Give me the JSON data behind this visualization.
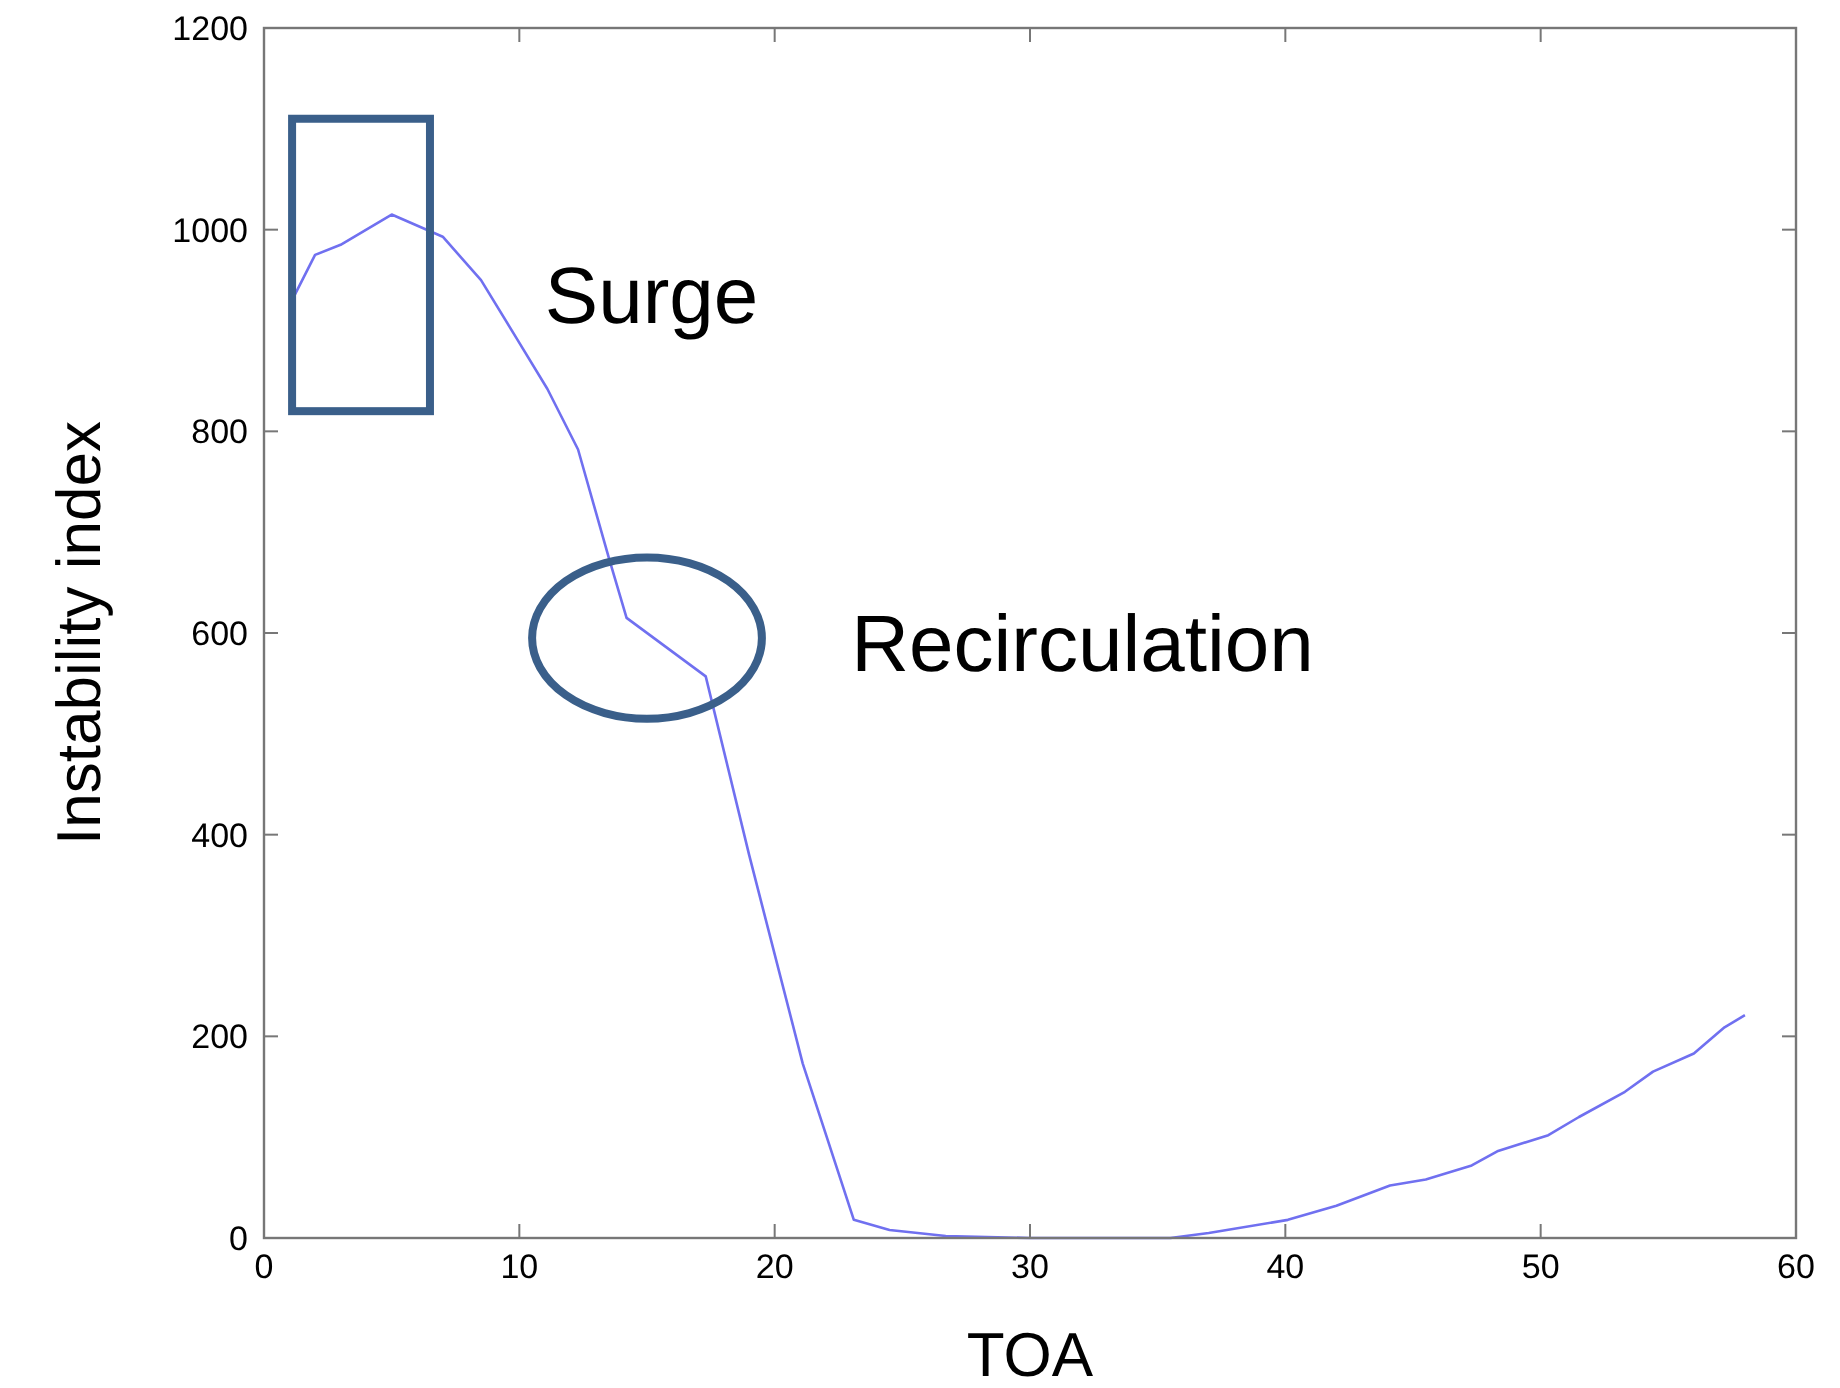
{
  "chart_data": {
    "type": "line",
    "xlabel": "TOA",
    "ylabel": "Instability index",
    "xlim": [
      0,
      60
    ],
    "ylim": [
      0,
      1200
    ],
    "xticks": [
      0,
      10,
      20,
      30,
      40,
      50,
      60
    ],
    "yticks": [
      0,
      200,
      400,
      600,
      800,
      1000,
      1200
    ],
    "grid": false,
    "series": [
      {
        "color": "#7070f0",
        "x": [
          1.2,
          2,
          3,
          5,
          7,
          8.5,
          9.9,
          11.1,
          12.3,
          13.5,
          14.2,
          17.3,
          19,
          21.1,
          23.1,
          24.5,
          26.7,
          30,
          35.5,
          37,
          40.1,
          42,
          44.1,
          45.5,
          47.3,
          48.3,
          50.3,
          51.5,
          53.3,
          54.4,
          56,
          57.2,
          58
        ],
        "values": [
          935,
          975,
          985,
          1015,
          993,
          950,
          892,
          842,
          782,
          675,
          615,
          557,
          380,
          173,
          18,
          8,
          2,
          0,
          0,
          5,
          18,
          32,
          52,
          58,
          72,
          86,
          102,
          120,
          145,
          165,
          183,
          209,
          221
        ]
      }
    ],
    "annotations": [
      "Surge",
      "Recirculation"
    ]
  }
}
